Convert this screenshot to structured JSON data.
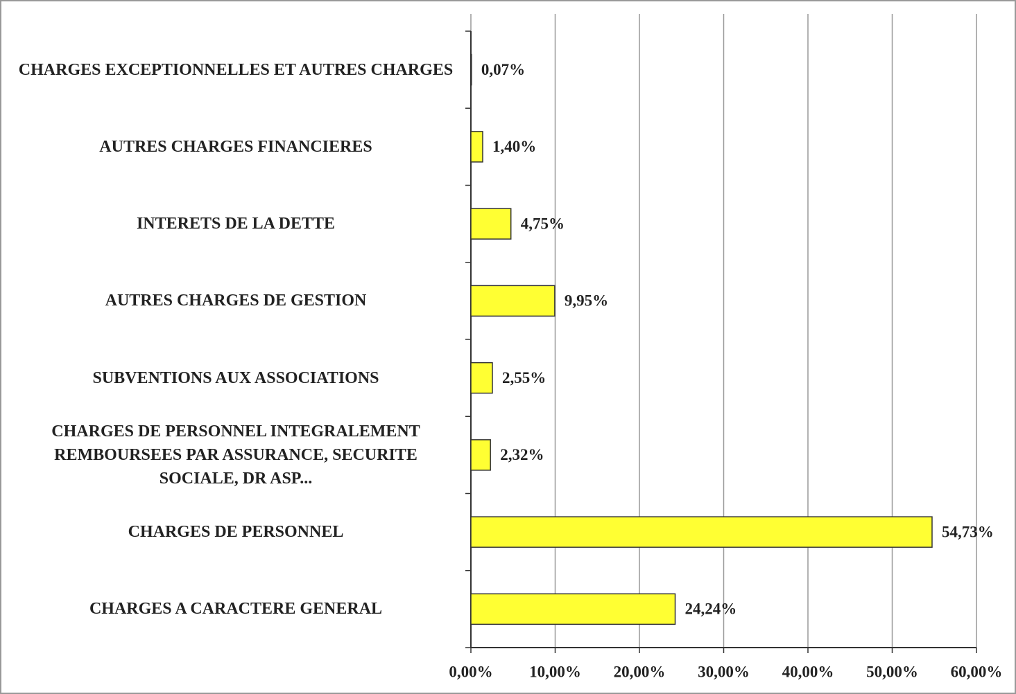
{
  "chart_data": {
    "type": "barh",
    "categories": [
      "CHARGES EXCEPTIONNELLES ET AUTRES CHARGES",
      "AUTRES CHARGES FINANCIERES",
      "INTERETS DE LA DETTE",
      "AUTRES CHARGES DE GESTION",
      "SUBVENTIONS AUX ASSOCIATIONS",
      "CHARGES DE PERSONNEL INTEGRALEMENT REMBOURSEES PAR ASSURANCE, SECURITE SOCIALE, DR ASP...",
      "CHARGES DE PERSONNEL",
      "CHARGES A CARACTERE GENERAL"
    ],
    "values": [
      0.07,
      1.4,
      4.75,
      9.95,
      2.55,
      2.32,
      54.73,
      24.24
    ],
    "value_labels": [
      "0,07%",
      "1,40%",
      "4,75%",
      "9,95%",
      "2,55%",
      "2,32%",
      "54,73%",
      "24,24%"
    ],
    "color": "#ffff33",
    "xlim": [
      0,
      60
    ],
    "xticks": [
      {
        "value": 0,
        "label": "0,00%"
      },
      {
        "value": 10,
        "label": "10,00%"
      },
      {
        "value": 20,
        "label": "20,00%"
      },
      {
        "value": 30,
        "label": "30,00%"
      },
      {
        "value": 40,
        "label": "40,00%"
      },
      {
        "value": 50,
        "label": "50,00%"
      },
      {
        "value": 60,
        "label": "60,00%"
      }
    ],
    "grid": true
  }
}
